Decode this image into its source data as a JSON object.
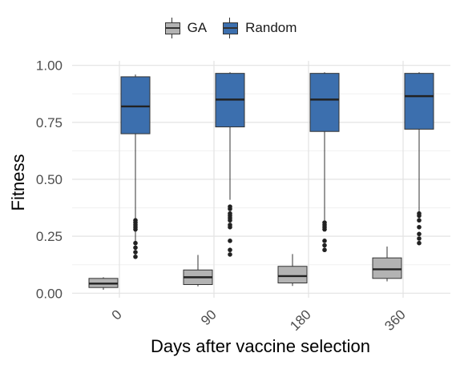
{
  "chart_data": {
    "type": "boxplot",
    "title": "",
    "xlabel": "Days after vaccine selection",
    "ylabel": "Fitness",
    "ylim": [
      -0.02,
      1.02
    ],
    "yticks": [
      0.0,
      0.25,
      0.5,
      0.75,
      1.0
    ],
    "ytick_labels": [
      "0.00",
      "0.25",
      "0.50",
      "0.75",
      "1.00"
    ],
    "categories": [
      "0",
      "90",
      "180",
      "360"
    ],
    "grid": true,
    "legend_position": "top",
    "series": [
      {
        "name": "GA",
        "color": "#B3B3B3",
        "boxes": [
          {
            "min": 0.015,
            "q1": 0.025,
            "median": 0.042,
            "q3": 0.065,
            "max": 0.07,
            "outliers": []
          },
          {
            "min": 0.03,
            "q1": 0.038,
            "median": 0.07,
            "q3": 0.102,
            "max": 0.168,
            "outliers": []
          },
          {
            "min": 0.032,
            "q1": 0.045,
            "median": 0.075,
            "q3": 0.118,
            "max": 0.172,
            "outliers": []
          },
          {
            "min": 0.052,
            "q1": 0.065,
            "median": 0.105,
            "q3": 0.155,
            "max": 0.205,
            "outliers": []
          }
        ]
      },
      {
        "name": "Random",
        "color": "#3C6FAE",
        "boxes": [
          {
            "min": 0.16,
            "q1": 0.7,
            "median": 0.82,
            "q3": 0.95,
            "max": 0.96,
            "outliers": [
              0.16,
              0.18,
              0.2,
              0.22,
              0.28,
              0.29,
              0.3,
              0.31,
              0.32
            ]
          },
          {
            "min": 0.41,
            "q1": 0.73,
            "median": 0.85,
            "q3": 0.965,
            "max": 0.97,
            "outliers": [
              0.17,
              0.19,
              0.23,
              0.29,
              0.3,
              0.32,
              0.33,
              0.34,
              0.35,
              0.37,
              0.38
            ]
          },
          {
            "min": 0.32,
            "q1": 0.71,
            "median": 0.85,
            "q3": 0.965,
            "max": 0.97,
            "outliers": [
              0.19,
              0.21,
              0.23,
              0.28,
              0.29,
              0.3,
              0.31
            ]
          },
          {
            "min": 0.36,
            "q1": 0.72,
            "median": 0.865,
            "q3": 0.965,
            "max": 0.97,
            "outliers": [
              0.22,
              0.24,
              0.26,
              0.29,
              0.32,
              0.34,
              0.35
            ]
          }
        ]
      }
    ]
  }
}
